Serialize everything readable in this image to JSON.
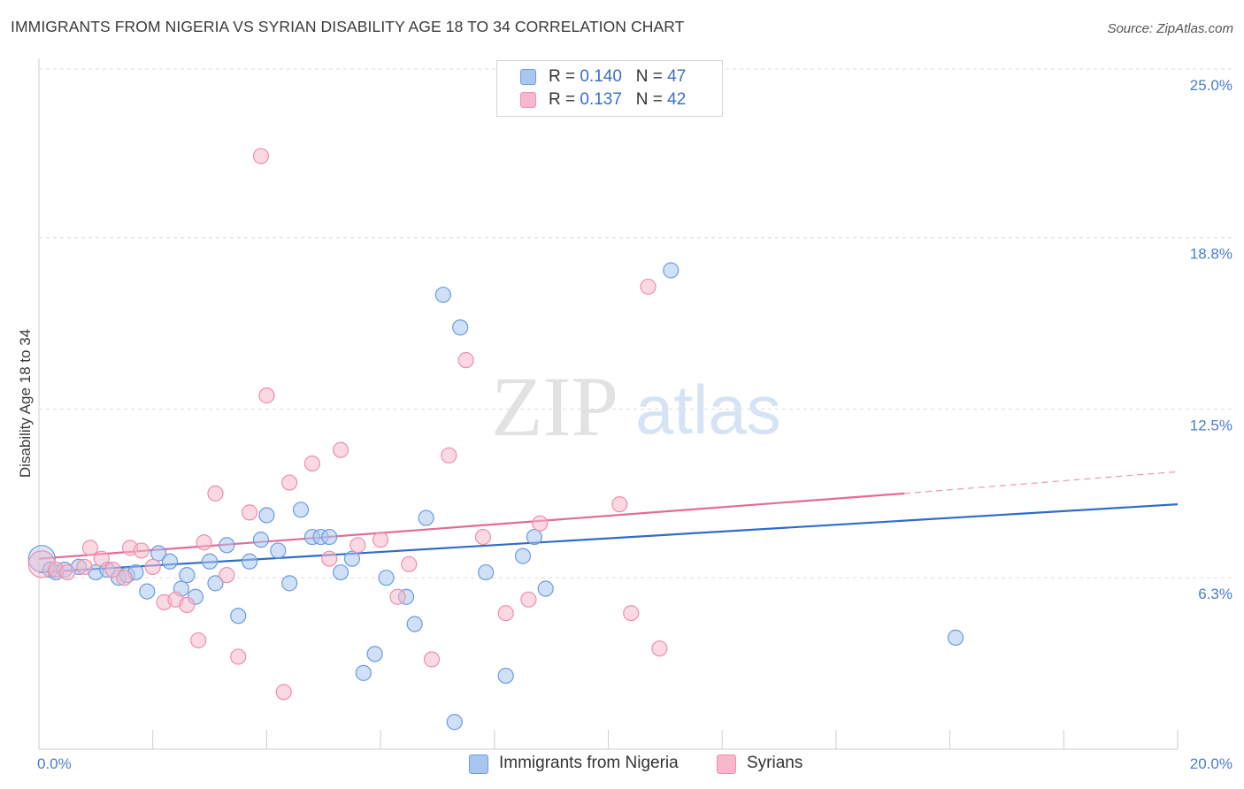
{
  "title": "IMMIGRANTS FROM NIGERIA VS SYRIAN DISABILITY AGE 18 TO 34 CORRELATION CHART",
  "source": "Source: ZipAtlas.com",
  "watermark": {
    "zip": "ZIP",
    "atlas": "atlas"
  },
  "legend": {
    "rows": [
      {
        "r_label": "R = ",
        "r_value": "0.140",
        "n_label": "N = ",
        "n_value": "47",
        "color": "#a9c6ee"
      },
      {
        "r_label": "R = ",
        "r_value": "0.137",
        "n_label": "N = ",
        "n_value": "42",
        "color": "#f6b9cb"
      }
    ]
  },
  "chart_data": {
    "type": "scatter",
    "title": "IMMIGRANTS FROM NIGERIA VS SYRIAN DISABILITY AGE 18 TO 34 CORRELATION CHART",
    "xlabel": "",
    "ylabel": "Disability Age 18 to 34",
    "xlim": [
      0,
      20
    ],
    "ylim": [
      0,
      25
    ],
    "x_tick_labels": [
      "0.0%",
      "20.0%"
    ],
    "y_ticks": [
      6.3,
      12.5,
      18.8,
      25.0
    ],
    "y_tick_labels": [
      "6.3%",
      "12.5%",
      "18.8%",
      "25.0%"
    ],
    "grid": "horizontal dashed",
    "legend_position": "top-center",
    "series": [
      {
        "name": "Immigrants from Nigeria",
        "color": "#6a9de0",
        "fill": "#a9c6ee",
        "trend": {
          "x": [
            0,
            20
          ],
          "y": [
            6.5,
            9.0
          ],
          "color": "#2f6cc9"
        },
        "points": [
          [
            0.05,
            7.0
          ],
          [
            0.2,
            6.6
          ],
          [
            0.3,
            6.5
          ],
          [
            0.45,
            6.6
          ],
          [
            0.7,
            6.7
          ],
          [
            1.0,
            6.5
          ],
          [
            1.2,
            6.6
          ],
          [
            1.4,
            6.3
          ],
          [
            1.55,
            6.4
          ],
          [
            1.7,
            6.5
          ],
          [
            1.9,
            5.8
          ],
          [
            2.1,
            7.2
          ],
          [
            2.3,
            6.9
          ],
          [
            2.5,
            5.9
          ],
          [
            2.6,
            6.4
          ],
          [
            2.75,
            5.6
          ],
          [
            3.0,
            6.9
          ],
          [
            3.1,
            6.1
          ],
          [
            3.3,
            7.5
          ],
          [
            3.5,
            4.9
          ],
          [
            3.7,
            6.9
          ],
          [
            3.9,
            7.7
          ],
          [
            4.0,
            8.6
          ],
          [
            4.2,
            7.3
          ],
          [
            4.4,
            6.1
          ],
          [
            4.6,
            8.8
          ],
          [
            4.8,
            7.8
          ],
          [
            4.95,
            7.8
          ],
          [
            5.1,
            7.8
          ],
          [
            5.3,
            6.5
          ],
          [
            5.5,
            7.0
          ],
          [
            5.7,
            2.8
          ],
          [
            5.9,
            3.5
          ],
          [
            6.1,
            6.3
          ],
          [
            6.45,
            5.6
          ],
          [
            6.6,
            4.6
          ],
          [
            6.8,
            8.5
          ],
          [
            7.1,
            16.7
          ],
          [
            7.3,
            1.0
          ],
          [
            7.4,
            15.5
          ],
          [
            7.85,
            6.5
          ],
          [
            8.2,
            2.7
          ],
          [
            8.5,
            7.1
          ],
          [
            8.7,
            7.8
          ],
          [
            8.9,
            5.9
          ],
          [
            11.1,
            17.6
          ],
          [
            16.1,
            4.1
          ]
        ]
      },
      {
        "name": "Syrians",
        "color": "#ee8fab",
        "fill": "#f6b9cb",
        "trend": {
          "x": [
            0,
            15.2
          ],
          "y": [
            7.0,
            9.4
          ],
          "color": "#e26b98"
        },
        "trend_extension": {
          "x": [
            15.2,
            20
          ],
          "y": [
            9.4,
            10.2
          ]
        },
        "points": [
          [
            0.05,
            6.8
          ],
          [
            0.3,
            6.6
          ],
          [
            0.5,
            6.5
          ],
          [
            0.8,
            6.7
          ],
          [
            0.9,
            7.4
          ],
          [
            1.1,
            7.0
          ],
          [
            1.3,
            6.6
          ],
          [
            1.5,
            6.3
          ],
          [
            1.6,
            7.4
          ],
          [
            1.8,
            7.3
          ],
          [
            2.0,
            6.7
          ],
          [
            2.2,
            5.4
          ],
          [
            2.4,
            5.5
          ],
          [
            2.6,
            5.3
          ],
          [
            2.8,
            4.0
          ],
          [
            2.9,
            7.6
          ],
          [
            3.1,
            9.4
          ],
          [
            3.3,
            6.4
          ],
          [
            3.5,
            3.4
          ],
          [
            3.7,
            8.7
          ],
          [
            3.9,
            21.8
          ],
          [
            4.0,
            13.0
          ],
          [
            4.3,
            2.1
          ],
          [
            4.4,
            9.8
          ],
          [
            4.8,
            10.5
          ],
          [
            5.1,
            7.0
          ],
          [
            5.3,
            11.0
          ],
          [
            5.6,
            7.5
          ],
          [
            6.0,
            7.7
          ],
          [
            6.3,
            5.6
          ],
          [
            6.5,
            6.8
          ],
          [
            6.9,
            3.3
          ],
          [
            7.2,
            10.8
          ],
          [
            7.5,
            14.3
          ],
          [
            7.8,
            7.8
          ],
          [
            8.2,
            5.0
          ],
          [
            8.6,
            5.5
          ],
          [
            8.8,
            8.3
          ],
          [
            10.2,
            9.0
          ],
          [
            10.4,
            5.0
          ],
          [
            10.7,
            17.0
          ],
          [
            10.9,
            3.7
          ]
        ]
      }
    ]
  }
}
